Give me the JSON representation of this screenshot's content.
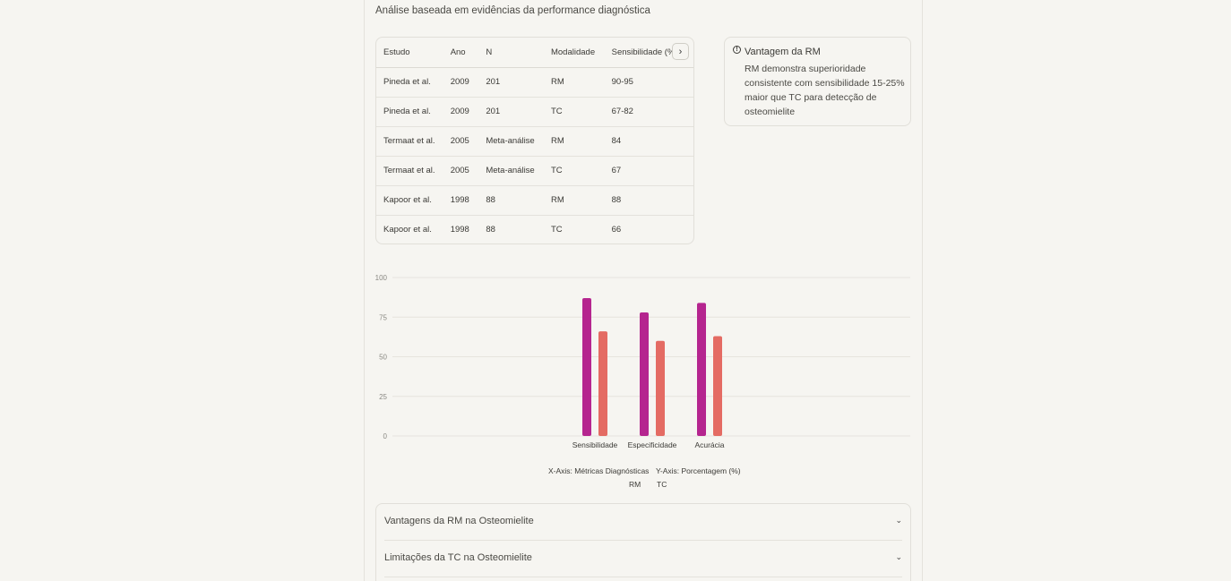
{
  "header": {
    "subtitle": "Análise baseada em evidências da performance diagnóstica"
  },
  "table": {
    "columns": [
      "Estudo",
      "Ano",
      "N",
      "Modalidade",
      "Sensibilidade (%"
    ],
    "rows": [
      [
        "Pineda et al.",
        "2009",
        "201",
        "RM",
        "90-95"
      ],
      [
        "Pineda et al.",
        "2009",
        "201",
        "TC",
        "67-82"
      ],
      [
        "Termaat et al.",
        "2005",
        "Meta-análise",
        "RM",
        "84"
      ],
      [
        "Termaat et al.",
        "2005",
        "Meta-análise",
        "TC",
        "67"
      ],
      [
        "Kapoor et al.",
        "1998",
        "88",
        "RM",
        "88"
      ],
      [
        "Kapoor et al.",
        "1998",
        "88",
        "TC",
        "66"
      ]
    ],
    "scroll_icon": "chevron-right-icon"
  },
  "alert": {
    "icon": "info-icon",
    "title": "Vantagem da RM",
    "body": "RM demonstra superioridade consistente com sensibilidade 15-25% maior que TC para detecção de osteomielite"
  },
  "chart_data": {
    "type": "bar",
    "categories": [
      "Sensibilidade",
      "Especificidade",
      "Acurácia"
    ],
    "series": [
      {
        "name": "RM",
        "values": [
          87,
          78,
          84
        ],
        "color": "#b5258f"
      },
      {
        "name": "TC",
        "values": [
          66,
          60,
          63
        ],
        "color": "#e46b63"
      }
    ],
    "yticks": [
      "0",
      "25",
      "50",
      "75",
      "100"
    ],
    "ylim": [
      0,
      100
    ],
    "grid": true,
    "xlabel": "X-Axis: Métricas Diagnósticas",
    "ylabel": "Y-Axis: Porcentagem (%)",
    "legend": [
      "RM",
      "TC"
    ]
  },
  "accordion": {
    "items": [
      {
        "label": "Vantagens da RM na Osteomielite",
        "icon": "chevron-down-icon"
      },
      {
        "label": "Limitações da TC na Osteomielite",
        "icon": "chevron-down-icon"
      }
    ]
  }
}
